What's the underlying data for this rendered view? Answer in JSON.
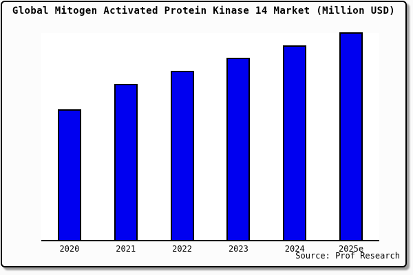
{
  "window": {
    "title": "Global Mitogen Activated Protein Kinase 14 Market (Million USD)",
    "source_label": "Source: Prof Research"
  },
  "colors": {
    "bar_fill": "#0000f0",
    "bar_border": "#000000",
    "frame_border": "#000000",
    "frame_background": "#fcfcfc",
    "plot_background": "#ffffff",
    "page_background": "#fafafa",
    "frame_shadow": "#9e9e9e",
    "text": "#000000"
  },
  "chart_data": {
    "type": "bar",
    "title": "Global Mitogen Activated Protein Kinase 14 Market (Million USD)",
    "categories": [
      "2020",
      "2021",
      "2022",
      "2023",
      "2024",
      "2025e"
    ],
    "values": [
      190,
      227,
      246,
      265,
      283,
      302
    ],
    "values_note": "No y-axis, gridlines or numeric labels are shown; values are relative bar heights measured in pixels (plot height 303px max).",
    "values_indexed_2020_100": [
      100,
      119.5,
      129.5,
      139.5,
      148.9,
      158.9
    ],
    "xlabel": "",
    "ylabel": "",
    "ylim": [
      0,
      303
    ],
    "grid": false,
    "legend": false,
    "y_axis_shown": false,
    "bar_color": "#0000f0",
    "source": "Source: Prof Research"
  }
}
